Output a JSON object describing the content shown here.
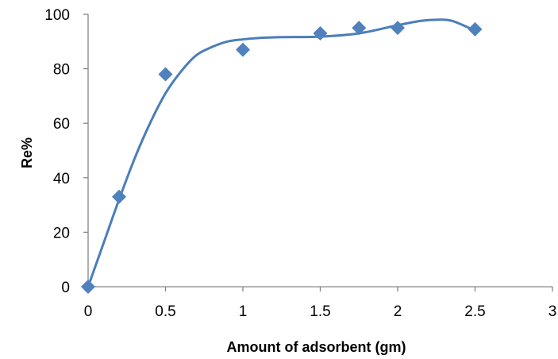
{
  "chart_data": {
    "type": "scatter",
    "title": "",
    "xlabel": "Amount of adsorbent (gm)",
    "ylabel": "Re%",
    "xlim": [
      0,
      3
    ],
    "ylim": [
      0,
      100
    ],
    "x_ticks": [
      "0",
      "0.5",
      "1",
      "1.5",
      "2",
      "2.5",
      "3"
    ],
    "y_ticks": [
      "0",
      "20",
      "40",
      "60",
      "80",
      "100"
    ],
    "grid": false,
    "legend": "none",
    "marker": "diamond",
    "series": [
      {
        "x": [
          0,
          0.2,
          0.5,
          1,
          1.5,
          1.75,
          2,
          2.5
        ],
        "y": [
          0,
          33,
          78,
          87,
          93,
          95,
          95,
          94.5
        ]
      }
    ],
    "trendline": {
      "type": "smooth",
      "x": [
        0,
        0.1,
        0.2,
        0.3,
        0.4,
        0.5,
        0.6,
        0.7,
        0.8,
        0.9,
        1.0,
        1.1,
        1.25,
        1.5,
        1.75,
        2.0,
        2.15,
        2.25,
        2.35,
        2.5
      ],
      "y": [
        0,
        16,
        32,
        47,
        60,
        71,
        79,
        85,
        88,
        90,
        90.8,
        91.3,
        91.6,
        91.8,
        93,
        96,
        97.6,
        98,
        97.6,
        94
      ]
    },
    "colors": {
      "marker": "#4f81bd",
      "line": "#4a7ebb",
      "axis": "#868686"
    }
  }
}
